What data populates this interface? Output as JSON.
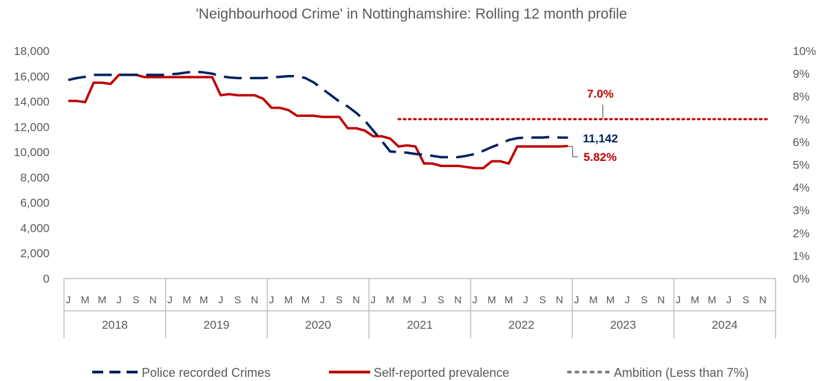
{
  "chart_data": {
    "type": "line",
    "title": "'Neighbourhood Crime' in Nottinghamshire: Rolling 12 month profile",
    "years": [
      "2018",
      "2019",
      "2020",
      "2021",
      "2022",
      "2023",
      "2024"
    ],
    "month_ticks": [
      "J",
      "M",
      "M",
      "J",
      "S",
      "N"
    ],
    "y_left": {
      "min": 0,
      "max": 18000,
      "ticks": [
        "0",
        "2,000",
        "4,000",
        "6,000",
        "8,000",
        "10,000",
        "12,000",
        "14,000",
        "16,000",
        "18,000"
      ]
    },
    "y_right": {
      "min": 0,
      "max": 10,
      "ticks": [
        "0%",
        "1%",
        "2%",
        "3%",
        "4%",
        "5%",
        "6%",
        "7%",
        "8%",
        "9%",
        "10%"
      ]
    },
    "gridlines": false,
    "series": [
      {
        "name": "Police recorded Crimes",
        "axis": "left",
        "color": "#002060",
        "style": "long-dash",
        "values": [
          15700,
          15850,
          15950,
          16100,
          16100,
          16100,
          16100,
          16100,
          16100,
          16100,
          16100,
          16100,
          16150,
          16200,
          16300,
          16350,
          16300,
          16200,
          16000,
          15900,
          15850,
          15850,
          15850,
          15850,
          15900,
          15950,
          16000,
          16000,
          15850,
          15500,
          15000,
          14500,
          14000,
          13600,
          13100,
          12500,
          11700,
          10900,
          10050,
          10000,
          9950,
          9850,
          9800,
          9700,
          9600,
          9600,
          9600,
          9700,
          9850,
          10100,
          10400,
          10650,
          10950,
          11100,
          11150,
          11150,
          11150,
          11200,
          11150,
          11142
        ]
      },
      {
        "name": "Self-reported prevalence",
        "axis": "right",
        "color": "#c00000",
        "style": "solid",
        "values": [
          7.8,
          7.8,
          7.75,
          8.6,
          8.6,
          8.55,
          8.95,
          8.95,
          8.95,
          8.85,
          8.85,
          8.85,
          8.85,
          8.85,
          8.85,
          8.85,
          8.85,
          8.85,
          8.05,
          8.1,
          8.05,
          8.05,
          8.05,
          7.9,
          7.5,
          7.5,
          7.4,
          7.15,
          7.15,
          7.15,
          7.1,
          7.1,
          7.1,
          6.6,
          6.6,
          6.5,
          6.25,
          6.25,
          6.15,
          5.8,
          5.85,
          5.8,
          5.05,
          5.05,
          4.95,
          4.95,
          4.95,
          4.9,
          4.85,
          4.85,
          5.15,
          5.15,
          5.05,
          5.8,
          5.8,
          5.8,
          5.8,
          5.8,
          5.8,
          5.82
        ]
      },
      {
        "name": "Ambition (Less than 7%)",
        "axis": "right",
        "color": "#c00000",
        "style": "dotted",
        "value": 7.0,
        "x_start_month_index": 39,
        "x_end_month_index": 83
      }
    ],
    "annotations": [
      {
        "text": "7.0%",
        "color": "#c00000"
      },
      {
        "text": "11,142",
        "color": "#002060"
      },
      {
        "text": "5.82%",
        "color": "#c00000"
      }
    ],
    "legend": {
      "position": "bottom"
    }
  }
}
